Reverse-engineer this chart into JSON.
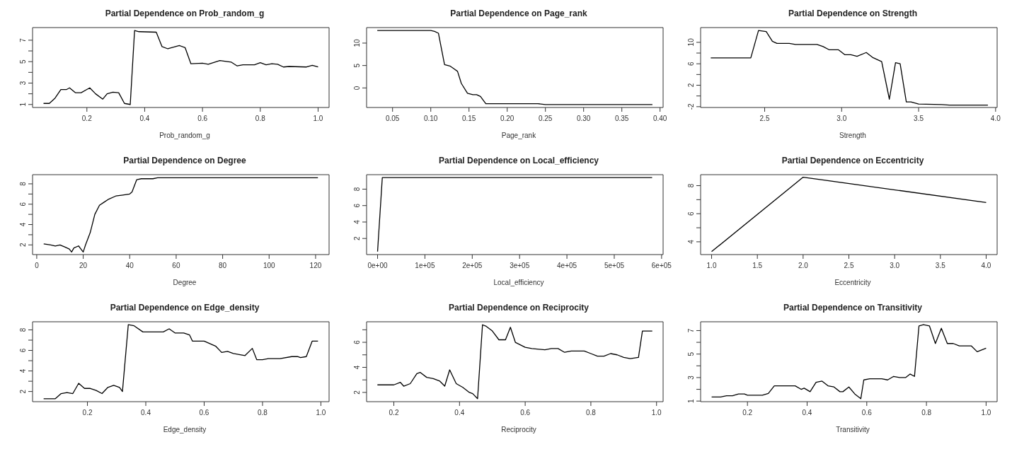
{
  "chart_data": [
    {
      "type": "line",
      "title": "Partial Dependence on Prob_random_g",
      "xlabel": "Prob_random_g",
      "color": "#000000",
      "xlim": [
        0.012,
        1.038
      ],
      "ylim": [
        0.72,
        8.18
      ],
      "xticks": [
        0.2,
        0.4,
        0.6,
        0.8,
        {
          "value": 1,
          "label": "1.0"
        }
      ],
      "yticks": [
        1,
        {
          "value": 2,
          "label": null
        },
        3,
        {
          "value": 4,
          "label": null
        },
        5,
        {
          "value": 6,
          "label": null
        },
        7
      ],
      "x": [
        0.05,
        0.07,
        0.09,
        0.11,
        0.13,
        0.14,
        0.16,
        0.18,
        0.2,
        0.21,
        0.23,
        0.255,
        0.27,
        0.29,
        0.31,
        0.33,
        0.35,
        0.365,
        0.38,
        0.44,
        0.46,
        0.48,
        0.52,
        0.54,
        0.56,
        0.6,
        0.62,
        0.66,
        0.7,
        0.72,
        0.74,
        0.78,
        0.8,
        0.82,
        0.84,
        0.86,
        0.88,
        0.9,
        0.96,
        0.98,
        1.0
      ],
      "values": [
        1.1,
        1.1,
        1.6,
        2.4,
        2.4,
        2.55,
        2.1,
        2.1,
        2.4,
        2.55,
        2.0,
        1.5,
        2.0,
        2.15,
        2.1,
        1.1,
        1.0,
        7.9,
        7.8,
        7.75,
        6.4,
        6.2,
        6.5,
        6.3,
        4.8,
        4.85,
        4.75,
        5.1,
        4.95,
        4.6,
        4.7,
        4.7,
        4.9,
        4.7,
        4.8,
        4.75,
        4.5,
        4.55,
        4.5,
        4.65,
        4.5
      ]
    },
    {
      "type": "line",
      "title": "Partial Dependence on Page_rank",
      "xlabel": "Page_rank",
      "color": "#000000",
      "xlim": [
        0.016,
        0.404
      ],
      "ylim": [
        -4.36,
        13.46
      ],
      "xticks": [
        0.05,
        {
          "value": 0.1,
          "label": "0.10"
        },
        0.15,
        {
          "value": 0.2,
          "label": "0.20"
        },
        0.25,
        {
          "value": 0.3,
          "label": "0.30"
        },
        0.35,
        {
          "value": 0.4,
          "label": "0.40"
        }
      ],
      "yticks": [
        0,
        5,
        10
      ],
      "x": [
        0.03,
        0.1,
        0.105,
        0.11,
        0.118,
        0.125,
        0.13,
        0.135,
        0.14,
        0.148,
        0.155,
        0.16,
        0.165,
        0.172,
        0.24,
        0.25,
        0.39
      ],
      "values": [
        12.8,
        12.8,
        12.6,
        12.2,
        5.2,
        4.9,
        4.3,
        3.7,
        1.0,
        -1.2,
        -1.5,
        -1.5,
        -1.9,
        -3.5,
        -3.5,
        -3.7,
        -3.7
      ]
    },
    {
      "type": "line",
      "title": "Partial Dependence on Strength",
      "xlabel": "Strength",
      "color": "#000000",
      "xlim": [
        2.084,
        4.01
      ],
      "ylim": [
        -2.15,
        12.75
      ],
      "xticks": [
        2.5,
        {
          "value": 3,
          "label": "3.0"
        },
        3.5,
        {
          "value": 4,
          "label": "4.0"
        }
      ],
      "yticks": [
        -2,
        {
          "value": 0,
          "label": null
        },
        2,
        {
          "value": 4,
          "label": null
        },
        6,
        {
          "value": 8,
          "label": null
        },
        10
      ],
      "x": [
        2.15,
        2.41,
        2.46,
        2.51,
        2.55,
        2.58,
        2.66,
        2.7,
        2.84,
        2.88,
        2.92,
        2.98,
        3.02,
        3.06,
        3.1,
        3.16,
        3.2,
        3.26,
        3.31,
        3.35,
        3.38,
        3.42,
        3.45,
        3.5,
        3.65,
        3.7,
        3.95
      ],
      "values": [
        7.1,
        7.1,
        12.2,
        12.0,
        10.2,
        9.8,
        9.8,
        9.6,
        9.6,
        9.2,
        8.6,
        8.6,
        7.7,
        7.7,
        7.4,
        8.1,
        7.2,
        6.4,
        -0.6,
        6.2,
        6.0,
        -1.1,
        -1.1,
        -1.5,
        -1.6,
        -1.7,
        -1.7
      ]
    },
    {
      "type": "line",
      "title": "Partial Dependence on Degree",
      "xlabel": "Degree",
      "color": "#000000",
      "xlim": [
        -1.8,
        125.8
      ],
      "ylim": [
        1.05,
        8.9
      ],
      "xticks": [
        0,
        20,
        40,
        60,
        80,
        100,
        120
      ],
      "yticks": [
        2,
        {
          "value": 3,
          "label": null
        },
        4,
        {
          "value": 5,
          "label": null
        },
        6,
        {
          "value": 7,
          "label": null
        },
        8
      ],
      "x": [
        3,
        6,
        8,
        10,
        12,
        14,
        15,
        16,
        18,
        19,
        20,
        21,
        23,
        25,
        27,
        29,
        31,
        34,
        37,
        40,
        41,
        43,
        45,
        50,
        52,
        121
      ],
      "values": [
        2.1,
        2.0,
        1.9,
        2.0,
        1.8,
        1.6,
        1.3,
        1.7,
        1.9,
        1.6,
        1.3,
        2.0,
        3.2,
        5.0,
        5.9,
        6.2,
        6.5,
        6.8,
        6.9,
        7.0,
        7.2,
        8.4,
        8.5,
        8.5,
        8.6,
        8.6
      ]
    },
    {
      "type": "line",
      "title": "Partial Dependence on Local_efficiency",
      "xlabel": "Local_efficiency",
      "color": "#000000",
      "xlim": [
        -23200,
        603200
      ],
      "ylim": [
        0.04,
        9.76
      ],
      "xticks": [
        {
          "value": 0,
          "label": "0e+00"
        },
        {
          "value": 100000,
          "label": "1e+05"
        },
        {
          "value": 200000,
          "label": "2e+05"
        },
        {
          "value": 300000,
          "label": "3e+05"
        },
        {
          "value": 400000,
          "label": "4e+05"
        },
        {
          "value": 500000,
          "label": "5e+05"
        },
        {
          "value": 600000,
          "label": "6e+05"
        }
      ],
      "yticks": [
        2,
        4,
        6,
        8
      ],
      "x": [
        0,
        10000,
        580000
      ],
      "values": [
        0.4,
        9.4,
        9.4
      ]
    },
    {
      "type": "line",
      "title": "Partial Dependence on Eccentricity",
      "xlabel": "Eccentricity",
      "color": "#000000",
      "xlim": [
        0.88,
        4.12
      ],
      "ylim": [
        3.09,
        8.78
      ],
      "xticks": [
        {
          "value": 1,
          "label": "1.0"
        },
        1.5,
        {
          "value": 2,
          "label": "2.0"
        },
        2.5,
        {
          "value": 3,
          "label": "3.0"
        },
        3.5,
        {
          "value": 4,
          "label": "4.0"
        }
      ],
      "yticks": [
        4,
        {
          "value": 5,
          "label": null
        },
        6,
        {
          "value": 7,
          "label": null
        },
        8
      ],
      "x": [
        1,
        2,
        4
      ],
      "values": [
        3.3,
        8.6,
        6.8
      ]
    },
    {
      "type": "line",
      "title": "Partial Dependence on Edge_density",
      "xlabel": "Edge_density",
      "color": "#000000",
      "xlim": [
        0.012,
        1.028
      ],
      "ylim": [
        1.01,
        8.79
      ],
      "xticks": [
        0.2,
        0.4,
        0.6,
        0.8,
        {
          "value": 1,
          "label": "1.0"
        }
      ],
      "yticks": [
        2,
        {
          "value": 3,
          "label": null
        },
        4,
        {
          "value": 5,
          "label": null
        },
        6,
        {
          "value": 7,
          "label": null
        },
        8
      ],
      "x": [
        0.05,
        0.09,
        0.11,
        0.13,
        0.15,
        0.17,
        0.19,
        0.21,
        0.23,
        0.25,
        0.27,
        0.29,
        0.31,
        0.32,
        0.34,
        0.36,
        0.39,
        0.46,
        0.48,
        0.5,
        0.53,
        0.55,
        0.56,
        0.6,
        0.64,
        0.66,
        0.68,
        0.7,
        0.72,
        0.74,
        0.765,
        0.78,
        0.8,
        0.82,
        0.86,
        0.9,
        0.92,
        0.93,
        0.95,
        0.97,
        0.99
      ],
      "values": [
        1.3,
        1.3,
        1.8,
        1.9,
        1.8,
        2.8,
        2.3,
        2.3,
        2.1,
        1.8,
        2.4,
        2.6,
        2.4,
        2.0,
        8.5,
        8.4,
        7.8,
        7.8,
        8.1,
        7.7,
        7.7,
        7.5,
        6.9,
        6.9,
        6.4,
        5.8,
        5.9,
        5.7,
        5.6,
        5.5,
        6.2,
        5.1,
        5.1,
        5.2,
        5.2,
        5.4,
        5.4,
        5.3,
        5.4,
        6.9,
        6.9
      ]
    },
    {
      "type": "line",
      "title": "Partial Dependence on Reciprocity",
      "xlabel": "Reciprocity",
      "color": "#000000",
      "xlim": [
        0.117,
        1.02
      ],
      "ylim": [
        1.26,
        7.64
      ],
      "xticks": [
        0.2,
        0.4,
        0.6,
        0.8,
        {
          "value": 1,
          "label": "1.0"
        }
      ],
      "yticks": [
        2,
        {
          "value": 3,
          "label": null
        },
        4,
        {
          "value": 5,
          "label": null
        },
        6,
        {
          "value": 7,
          "label": null
        }
      ],
      "x": [
        0.15,
        0.2,
        0.22,
        0.23,
        0.25,
        0.27,
        0.28,
        0.3,
        0.32,
        0.34,
        0.355,
        0.37,
        0.39,
        0.41,
        0.43,
        0.44,
        0.455,
        0.47,
        0.48,
        0.5,
        0.52,
        0.54,
        0.555,
        0.57,
        0.6,
        0.62,
        0.66,
        0.68,
        0.7,
        0.72,
        0.74,
        0.78,
        0.8,
        0.82,
        0.84,
        0.86,
        0.88,
        0.9,
        0.92,
        0.945,
        0.957,
        0.987
      ],
      "values": [
        2.6,
        2.6,
        2.8,
        2.5,
        2.7,
        3.5,
        3.6,
        3.2,
        3.1,
        2.9,
        2.5,
        3.8,
        2.7,
        2.4,
        2.0,
        1.9,
        1.5,
        7.4,
        7.3,
        6.9,
        6.2,
        6.2,
        7.2,
        6.0,
        5.6,
        5.5,
        5.4,
        5.5,
        5.5,
        5.2,
        5.3,
        5.3,
        5.1,
        4.9,
        4.9,
        5.1,
        5.0,
        4.8,
        4.7,
        4.8,
        6.9,
        6.9
      ]
    },
    {
      "type": "line",
      "title": "Partial Dependence on Transitivity",
      "xlabel": "Transitivity",
      "color": "#000000",
      "xlim": [
        0.043,
        1.037
      ],
      "ylim": [
        0.95,
        7.75
      ],
      "xticks": [
        0.2,
        0.4,
        0.6,
        0.8,
        {
          "value": 1,
          "label": "1.0"
        }
      ],
      "yticks": [
        1,
        {
          "value": 2,
          "label": null
        },
        3,
        {
          "value": 4,
          "label": null
        },
        5,
        {
          "value": 6,
          "label": null
        },
        7
      ],
      "x": [
        0.08,
        0.11,
        0.13,
        0.15,
        0.17,
        0.19,
        0.2,
        0.25,
        0.27,
        0.29,
        0.36,
        0.38,
        0.39,
        0.41,
        0.43,
        0.45,
        0.47,
        0.49,
        0.51,
        0.52,
        0.54,
        0.56,
        0.58,
        0.59,
        0.61,
        0.65,
        0.67,
        0.69,
        0.71,
        0.73,
        0.745,
        0.76,
        0.775,
        0.79,
        0.81,
        0.83,
        0.85,
        0.87,
        0.89,
        0.91,
        0.95,
        0.97,
        1.0
      ],
      "values": [
        1.35,
        1.35,
        1.45,
        1.45,
        1.6,
        1.6,
        1.5,
        1.5,
        1.65,
        2.3,
        2.3,
        2.0,
        2.1,
        1.8,
        2.6,
        2.7,
        2.3,
        2.2,
        1.8,
        1.8,
        2.2,
        1.6,
        1.2,
        2.8,
        2.9,
        2.9,
        2.8,
        3.1,
        3.0,
        3.0,
        3.3,
        3.1,
        7.4,
        7.5,
        7.4,
        5.9,
        7.2,
        5.9,
        5.9,
        5.7,
        5.7,
        5.2,
        5.5
      ]
    }
  ]
}
